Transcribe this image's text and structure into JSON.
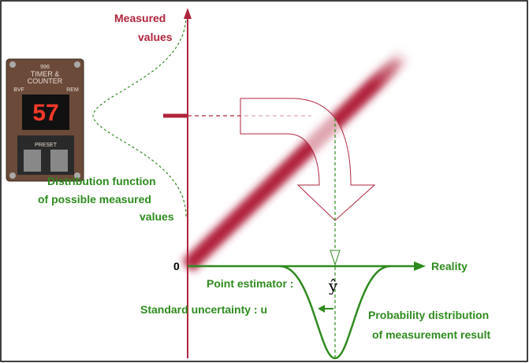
{
  "axes": {
    "y_label_line1": "Measured",
    "y_label_line2": "values",
    "origin": "0",
    "x_label": "Reality"
  },
  "device": {
    "model": "996",
    "line1": "TIMER &",
    "line2": "COUNTER",
    "left": "BVF",
    "right": "REM",
    "reading": "57",
    "preset": "PRESET"
  },
  "distribution_label": {
    "line1": "Distribution function",
    "line2": "of possible measured",
    "line3": "values"
  },
  "point_estimator": {
    "label": "Point estimator :",
    "symbol": "ŷ"
  },
  "uncertainty": {
    "label": "Standard uncertainty : u"
  },
  "result_label": {
    "line1": "Probability distribution",
    "line2": "of measurement result"
  }
}
